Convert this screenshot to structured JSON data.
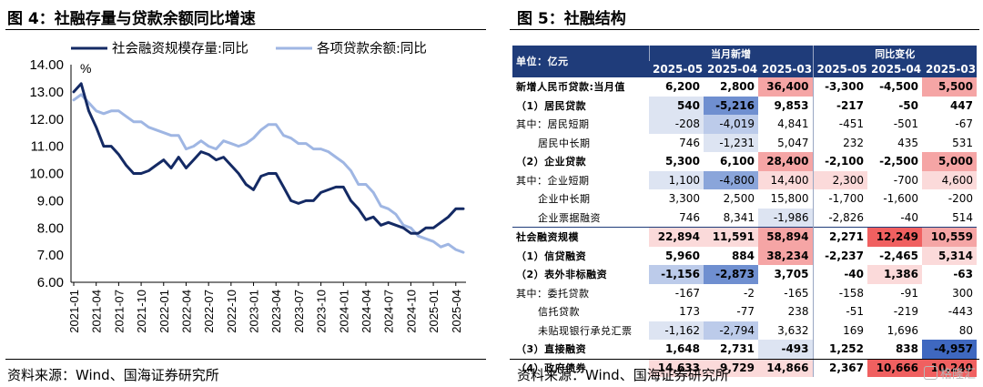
{
  "left_panel": {
    "title": "图 4：社融存量与贷款余额同比增速",
    "source": "资料来源：Wind、国海证券研究所"
  },
  "right_panel": {
    "title": "图 5：社融结构",
    "source": "资料来源：Wind、国海证券研究所",
    "watermark": "格隆汇"
  },
  "chart_data": {
    "type": "line",
    "unit_label": "%",
    "ylim": [
      6.0,
      14.0
    ],
    "yticks": [
      "14.00",
      "13.00",
      "12.00",
      "11.00",
      "10.00",
      "9.00",
      "8.00",
      "7.00",
      "6.00"
    ],
    "xticks": [
      "2021-01",
      "2021-04",
      "2021-07",
      "2021-10",
      "2022-01",
      "2022-04",
      "2022-07",
      "2022-10",
      "2023-01",
      "2023-04",
      "2023-07",
      "2023-10",
      "2024-01",
      "2024-04",
      "2024-07",
      "2024-10",
      "2025-01",
      "2025-04"
    ],
    "legend_position": "top",
    "grid": false,
    "x_range": [
      "2021-01",
      "2025-05"
    ],
    "series": [
      {
        "name": "社会融资规模存量:同比",
        "color": "#142a64",
        "width": 3,
        "x": [
          "2021-01",
          "2021-02",
          "2021-03",
          "2021-04",
          "2021-05",
          "2021-06",
          "2021-07",
          "2021-08",
          "2021-09",
          "2021-10",
          "2021-11",
          "2021-12",
          "2022-01",
          "2022-02",
          "2022-03",
          "2022-04",
          "2022-05",
          "2022-06",
          "2022-07",
          "2022-08",
          "2022-09",
          "2022-10",
          "2022-11",
          "2022-12",
          "2023-01",
          "2023-02",
          "2023-03",
          "2023-04",
          "2023-05",
          "2023-06",
          "2023-07",
          "2023-08",
          "2023-09",
          "2023-10",
          "2023-11",
          "2023-12",
          "2024-01",
          "2024-02",
          "2024-03",
          "2024-04",
          "2024-05",
          "2024-06",
          "2024-07",
          "2024-08",
          "2024-09",
          "2024-10",
          "2024-11",
          "2024-12",
          "2025-01",
          "2025-02",
          "2025-03",
          "2025-04",
          "2025-05"
        ],
        "values": [
          13.0,
          13.3,
          12.3,
          11.7,
          11.0,
          11.0,
          10.7,
          10.3,
          10.0,
          10.0,
          10.1,
          10.3,
          10.5,
          10.2,
          10.6,
          10.2,
          10.5,
          10.8,
          10.7,
          10.5,
          10.6,
          10.3,
          10.0,
          9.6,
          9.4,
          9.9,
          10.0,
          10.0,
          9.5,
          9.0,
          8.9,
          9.0,
          9.0,
          9.3,
          9.4,
          9.5,
          9.5,
          9.0,
          8.7,
          8.3,
          8.4,
          8.1,
          8.2,
          8.1,
          8.0,
          7.8,
          7.8,
          8.0,
          8.0,
          8.2,
          8.4,
          8.7,
          8.7
        ]
      },
      {
        "name": "各项贷款余额:同比",
        "color": "#9fb6e3",
        "width": 3,
        "x": [
          "2021-01",
          "2021-02",
          "2021-03",
          "2021-04",
          "2021-05",
          "2021-06",
          "2021-07",
          "2021-08",
          "2021-09",
          "2021-10",
          "2021-11",
          "2021-12",
          "2022-01",
          "2022-02",
          "2022-03",
          "2022-04",
          "2022-05",
          "2022-06",
          "2022-07",
          "2022-08",
          "2022-09",
          "2022-10",
          "2022-11",
          "2022-12",
          "2023-01",
          "2023-02",
          "2023-03",
          "2023-04",
          "2023-05",
          "2023-06",
          "2023-07",
          "2023-08",
          "2023-09",
          "2023-10",
          "2023-11",
          "2023-12",
          "2024-01",
          "2024-02",
          "2024-03",
          "2024-04",
          "2024-05",
          "2024-06",
          "2024-07",
          "2024-08",
          "2024-09",
          "2024-10",
          "2024-11",
          "2024-12",
          "2025-01",
          "2025-02",
          "2025-03",
          "2025-04",
          "2025-05"
        ],
        "values": [
          12.7,
          12.9,
          12.6,
          12.3,
          12.2,
          12.3,
          12.3,
          12.1,
          11.9,
          11.9,
          11.7,
          11.6,
          11.5,
          11.4,
          11.4,
          10.9,
          11.0,
          11.2,
          11.0,
          10.9,
          11.2,
          11.1,
          11.0,
          11.1,
          11.3,
          11.6,
          11.8,
          11.8,
          11.4,
          11.3,
          11.1,
          11.1,
          10.9,
          10.9,
          10.8,
          10.6,
          10.4,
          10.1,
          9.6,
          9.6,
          9.3,
          8.8,
          8.7,
          8.5,
          8.1,
          8.0,
          7.7,
          7.6,
          7.5,
          7.3,
          7.4,
          7.2,
          7.1
        ]
      }
    ]
  },
  "table": {
    "unit_label": "单位：亿元",
    "group_headers": [
      "当月新增",
      "同比变化"
    ],
    "columns": [
      "2025-05",
      "2025-04",
      "2025-03",
      "2025-05",
      "2025-04",
      "2025-03"
    ],
    "rows": [
      {
        "label": "新增人民币贷款:当月值",
        "cells": [
          "6,200",
          "2,800",
          "36,400",
          "-3,300",
          "-4,500",
          "5,500"
        ],
        "bg": [
          "#ffffff",
          "#ffffff",
          "#f5a5a5",
          "#ffffff",
          "#ffffff",
          "#f5a5a5"
        ],
        "bold": true,
        "sep": true
      },
      {
        "label": "（1）居民贷款",
        "cells": [
          "540",
          "-5,216",
          "9,853",
          "-217",
          "-50",
          "447"
        ],
        "bg": [
          "#dde4f2",
          "#6f8fd0",
          "#ffffff",
          "#ffffff",
          "#ffffff",
          "#ffffff"
        ],
        "bold": true
      },
      {
        "label": "其中：居民短期",
        "cells": [
          "-208",
          "-4,019",
          "4,841",
          "-451",
          "-501",
          "-67"
        ],
        "bg": [
          "#dde4f2",
          "#bccbea",
          "#ffffff",
          "#ffffff",
          "#ffffff",
          "#ffffff"
        ],
        "bold": false
      },
      {
        "label": "      居民中长期",
        "cells": [
          "746",
          "-1,231",
          "5,047",
          "232",
          "435",
          "531"
        ],
        "bg": [
          "#ffffff",
          "#dde4f2",
          "#ffffff",
          "#ffffff",
          "#ffffff",
          "#ffffff"
        ],
        "bold": false
      },
      {
        "label": "（2）企业贷款",
        "cells": [
          "5,300",
          "6,100",
          "28,400",
          "-2,100",
          "-2,500",
          "5,000"
        ],
        "bg": [
          "#ffffff",
          "#ffffff",
          "#f5a5a5",
          "#ffffff",
          "#ffffff",
          "#f5a5a5"
        ],
        "bold": true
      },
      {
        "label": "其中：企业短期",
        "cells": [
          "1,100",
          "-4,800",
          "14,400",
          "2,300",
          "-700",
          "4,600"
        ],
        "bg": [
          "#dde4f2",
          "#8aa5da",
          "#fbdada",
          "#fbdada",
          "#ffffff",
          "#fbdada"
        ],
        "bold": false
      },
      {
        "label": "      企业中长期",
        "cells": [
          "3,300",
          "2,500",
          "15,800",
          "-1,700",
          "-1,600",
          "-200"
        ],
        "bg": [
          "#ffffff",
          "#ffffff",
          "#ffffff",
          "#ffffff",
          "#ffffff",
          "#ffffff"
        ],
        "bold": false
      },
      {
        "label": "      企业票据融资",
        "cells": [
          "746",
          "8,341",
          "-1,986",
          "-2,826",
          "-40",
          "514"
        ],
        "bg": [
          "#ffffff",
          "#ffffff",
          "#dde4f2",
          "#ffffff",
          "#ffffff",
          "#ffffff"
        ],
        "bold": false
      },
      {
        "label": "社会融资规模",
        "cells": [
          "22,894",
          "11,591",
          "58,894",
          "2,271",
          "12,249",
          "10,559"
        ],
        "bg": [
          "#fbdada",
          "#fbdada",
          "#f5a5a5",
          "#ffffff",
          "#f06060",
          "#f5a5a5"
        ],
        "bold": true,
        "sep": true
      },
      {
        "label": "（1）信贷融资",
        "cells": [
          "5,960",
          "884",
          "38,234",
          "-2,237",
          "-2,465",
          "5,314"
        ],
        "bg": [
          "#ffffff",
          "#ffffff",
          "#f5a5a5",
          "#ffffff",
          "#ffffff",
          "#fbdada"
        ],
        "bold": true
      },
      {
        "label": "（2）表外非标融资",
        "cells": [
          "-1,156",
          "-2,873",
          "3,705",
          "-40",
          "1,386",
          "-63"
        ],
        "bg": [
          "#bccbea",
          "#6f8fd0",
          "#ffffff",
          "#ffffff",
          "#fbdada",
          "#ffffff"
        ],
        "bold": true
      },
      {
        "label": "其中：委托贷款",
        "cells": [
          "-167",
          "-2",
          "-165",
          "-158",
          "-91",
          "300"
        ],
        "bg": [
          "#ffffff",
          "#ffffff",
          "#ffffff",
          "#ffffff",
          "#ffffff",
          "#ffffff"
        ],
        "bold": false
      },
      {
        "label": "      信托贷款",
        "cells": [
          "173",
          "-77",
          "238",
          "-51",
          "-219",
          "-443"
        ],
        "bg": [
          "#ffffff",
          "#ffffff",
          "#ffffff",
          "#ffffff",
          "#ffffff",
          "#ffffff"
        ],
        "bold": false
      },
      {
        "label": "      未贴现银行承兑汇票",
        "cells": [
          "-1,162",
          "-2,794",
          "3,632",
          "169",
          "1,696",
          "80"
        ],
        "bg": [
          "#dde4f2",
          "#bccbea",
          "#ffffff",
          "#ffffff",
          "#ffffff",
          "#ffffff"
        ],
        "bold": false
      },
      {
        "label": "（3）直接融资",
        "cells": [
          "1,648",
          "2,731",
          "-493",
          "1,252",
          "838",
          "-4,957"
        ],
        "bg": [
          "#ffffff",
          "#ffffff",
          "#dde4f2",
          "#ffffff",
          "#ffffff",
          "#3f68c0"
        ],
        "bold": true
      },
      {
        "label": "（4）政府债券",
        "cells": [
          "14,633",
          "9,729",
          "14,866",
          "2,367",
          "10,666",
          "10,240"
        ],
        "bg": [
          "#fbdada",
          "#fbdada",
          "#fbdada",
          "#ffffff",
          "#f06060",
          "#f06060"
        ],
        "bold": true
      }
    ]
  }
}
